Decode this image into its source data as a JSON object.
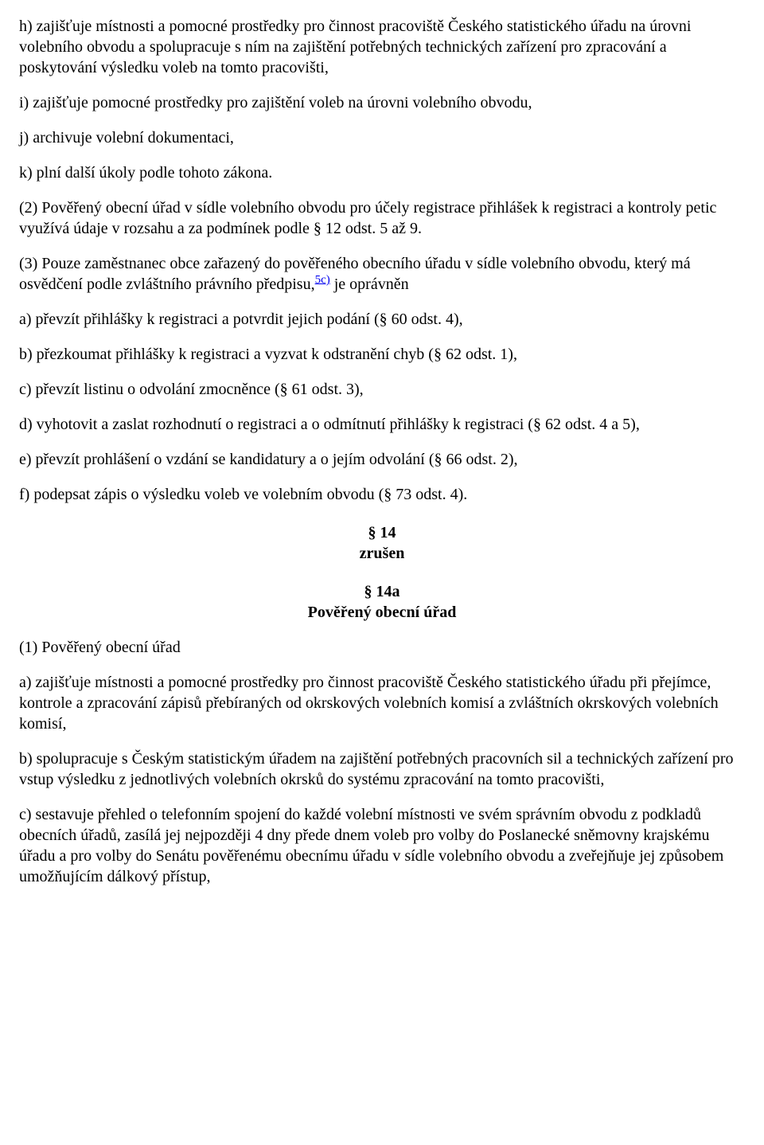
{
  "paragraphs": {
    "h": "h) zajišťuje místnosti a pomocné prostředky pro činnost pracoviště Českého statistického úřadu na úrovni volebního obvodu a spolupracuje s ním na zajištění potřebných technických zařízení pro zpracování a poskytování výsledku voleb na tomto pracovišti,",
    "i": "i) zajišťuje pomocné prostředky pro zajištění voleb na úrovni volebního obvodu,",
    "j": "j) archivuje volební dokumentaci,",
    "k": "k) plní další úkoly podle tohoto zákona.",
    "p2": "(2) Pověřený obecní úřad v sídle volebního obvodu pro účely registrace přihlášek k registraci a kontroly petic využívá údaje v rozsahu a za podmínek podle § 12 odst. 5 až 9.",
    "p3_before": "(3) Pouze zaměstnanec obce zařazený do pověřeného obecního úřadu v sídle volebního obvodu, který má osvědčení podle zvláštního právního předpisu,",
    "p3_footnote": "5c)",
    "p3_after": " je oprávněn",
    "a": "a) převzít přihlášky k registraci a potvrdit jejich podání (§ 60 odst. 4),",
    "b": "b) přezkoumat přihlášky k registraci a vyzvat k odstranění chyb (§ 62 odst. 1),",
    "c": "c) převzít listinu o odvolání zmocněnce (§ 61 odst. 3),",
    "d": "d) vyhotovit a zaslat rozhodnutí o registraci a o odmítnutí přihlášky k registraci (§ 62 odst. 4 a 5),",
    "e": "e) převzít prohlášení o vzdání se kandidatury a o jejím odvolání (§ 66 odst. 2),",
    "f": "f) podepsat zápis o výsledku voleb ve volebním obvodu (§ 73 odst. 4)."
  },
  "section14": {
    "number": "§ 14",
    "status": "zrušen"
  },
  "section14a": {
    "number": "§ 14a",
    "title": "Pověřený obecní úřad",
    "p1_intro": "(1) Pověřený obecní úřad",
    "a": "a) zajišťuje místnosti a pomocné prostředky pro činnost pracoviště Českého statistického úřadu při přejímce, kontrole a zpracování zápisů přebíraných od okrskových volebních komisí a zvláštních okrskových volebních komisí,",
    "b": "b) spolupracuje s Českým statistickým úřadem na zajištění potřebných pracovních sil a technických zařízení pro vstup výsledku z jednotlivých volebních okrsků do systému zpracování na tomto pracovišti,",
    "c": "c) sestavuje přehled o telefonním spojení do každé volební místnosti ve svém správním obvodu z podkladů obecních úřadů, zasílá jej nejpozději 4 dny přede dnem voleb pro volby do Poslanecké sněmovny krajskému úřadu a pro volby do Senátu pověřenému obecnímu úřadu v sídle volebního obvodu a zveřejňuje jej způsobem umožňujícím dálkový přístup,"
  }
}
